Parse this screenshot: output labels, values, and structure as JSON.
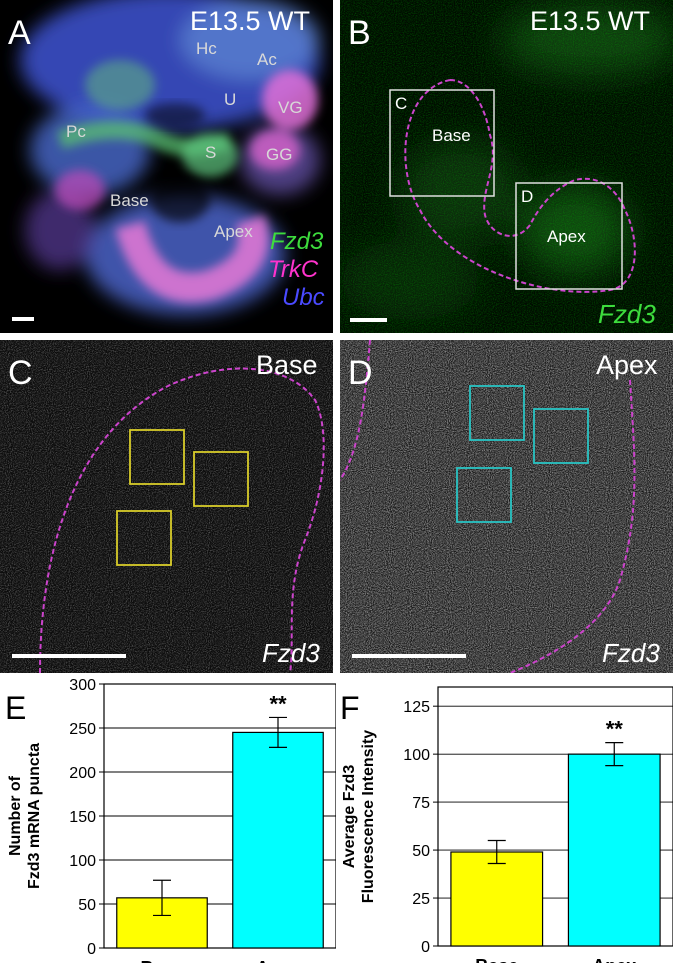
{
  "panels": {
    "A": {
      "letter": "A",
      "title": "E13.5 WT",
      "labels": {
        "hc": "Hc",
        "ac": "Ac",
        "u": "U",
        "vg": "VG",
        "pc": "Pc",
        "s": "S",
        "gg": "GG",
        "base": "Base",
        "apex": "Apex"
      },
      "legend": [
        {
          "text": "Fzd3",
          "color": "#3ddc3d"
        },
        {
          "text": "TrkC",
          "color": "#ff33cc"
        },
        {
          "text": "Ubc",
          "color": "#4a4aff"
        }
      ]
    },
    "B": {
      "letter": "B",
      "title": "E13.5 WT",
      "box_c": "C",
      "box_d": "D",
      "base_label": "Base",
      "apex_label": "Apex",
      "gene": "Fzd3",
      "gene_color": "#3ddc3d"
    },
    "C": {
      "letter": "C",
      "title": "Base",
      "gene": "Fzd3",
      "box_color": "#d8cc2a"
    },
    "D": {
      "letter": "D",
      "title": "Apex",
      "gene": "Fzd3",
      "box_color": "#29c4c4"
    }
  },
  "chart_data": [
    {
      "panel": "E",
      "type": "bar",
      "categories": [
        "Base",
        "Apex"
      ],
      "values": [
        57,
        245
      ],
      "errors": [
        20,
        17
      ],
      "significance": [
        "",
        "**"
      ],
      "colors": [
        "#ffff00",
        "#00ffff"
      ],
      "ylabel": [
        "Number of",
        "Fzd3 mRNA puncta"
      ],
      "ylim": [
        0,
        300
      ],
      "yticks": [
        0,
        50,
        100,
        150,
        200,
        250,
        300
      ],
      "grid": true
    },
    {
      "panel": "F",
      "type": "bar",
      "categories": [
        "Base",
        "Apex"
      ],
      "values": [
        49,
        100
      ],
      "errors": [
        6,
        6
      ],
      "significance": [
        "",
        "**"
      ],
      "colors": [
        "#ffff00",
        "#00ffff"
      ],
      "ylabel": [
        "Average Fzd3",
        "Fluorescence Intensity"
      ],
      "ylim": [
        0,
        135
      ],
      "yticks": [
        0,
        25,
        50,
        75,
        100,
        125
      ],
      "grid": true
    }
  ]
}
